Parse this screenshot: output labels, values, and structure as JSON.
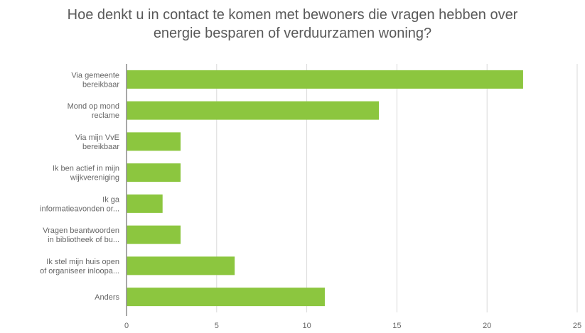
{
  "chart_data": {
    "type": "bar",
    "orientation": "horizontal",
    "title_lines": [
      "Hoe denkt u in contact te komen met bewoners die vragen hebben over",
      "energie besparen of verduurzamen woning?"
    ],
    "categories": [
      [
        "Via gemeente",
        "bereikbaar"
      ],
      [
        "Mond op mond",
        "reclame"
      ],
      [
        "Via mijn VvE",
        "bereikbaar"
      ],
      [
        "Ik ben actief in mijn",
        "wijkvereniging"
      ],
      [
        "Ik ga",
        "informatieavonden or..."
      ],
      [
        "Vragen beantwoorden",
        "in bibliotheek of bu..."
      ],
      [
        "Ik stel mijn huis open",
        "of organiseer inloopa..."
      ],
      [
        "Anders"
      ]
    ],
    "values": [
      22,
      14,
      3,
      3,
      2,
      3,
      6,
      11
    ],
    "xlim": [
      0,
      25
    ],
    "x_ticks": [
      0,
      5,
      10,
      15,
      20,
      25
    ],
    "grid": "vertical",
    "bar_color": "#8cc63f",
    "grid_color": "#d9d9d9",
    "axis_color": "#8c8c8c"
  }
}
